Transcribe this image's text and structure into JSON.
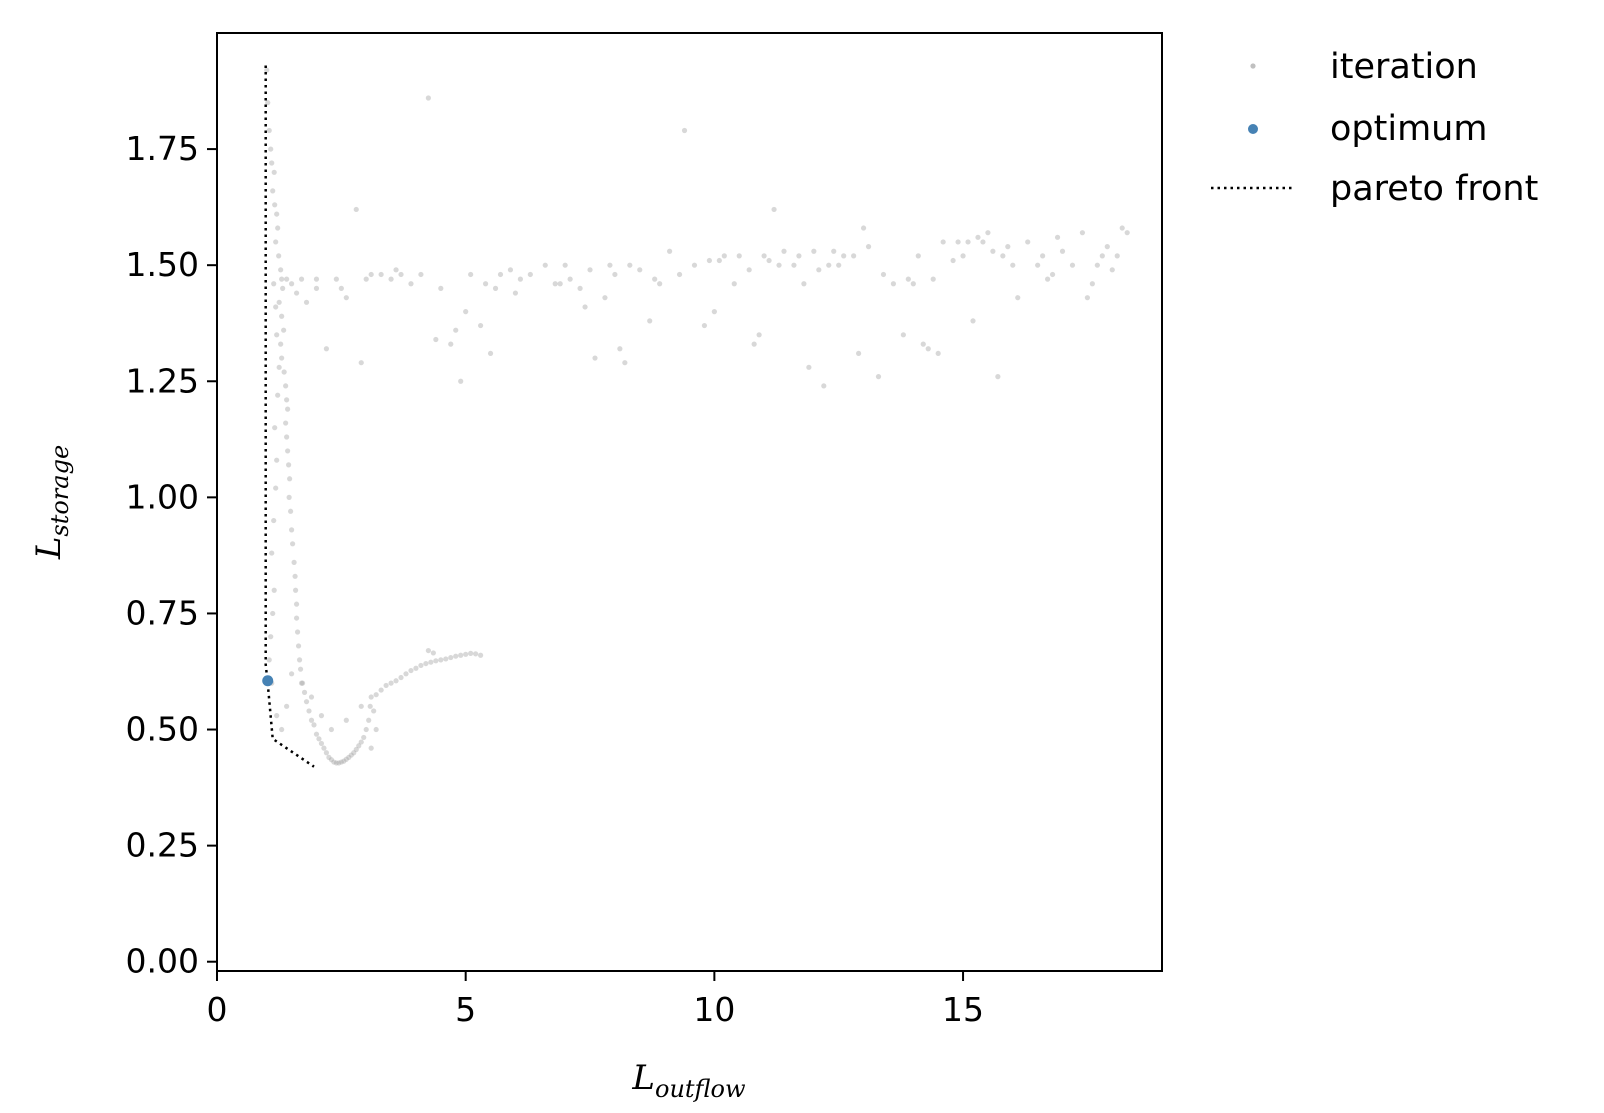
{
  "chart_data": {
    "type": "scatter",
    "xlabel": {
      "main": "L",
      "sub": "outflow"
    },
    "ylabel": {
      "main": "L",
      "sub": "storage"
    },
    "xlim": [
      0,
      19
    ],
    "ylim": [
      -0.02,
      2.0
    ],
    "xticks": [
      0,
      5,
      10,
      15
    ],
    "xtick_labels": [
      "0",
      "5",
      "10",
      "15"
    ],
    "yticks": [
      0.0,
      0.25,
      0.5,
      0.75,
      1.0,
      1.25,
      1.5,
      1.75
    ],
    "ytick_labels": [
      "0.00",
      "0.25",
      "0.50",
      "0.75",
      "1.00",
      "1.25",
      "1.50",
      "1.75"
    ],
    "grid": false,
    "legend_position": "outside-top-right",
    "legend": [
      {
        "label": "iteration",
        "marker": "dot",
        "color": "#c0c0c0"
      },
      {
        "label": "optimum",
        "marker": "dot",
        "color": "#4682b4"
      },
      {
        "label": "pareto front",
        "marker": "dotted-line",
        "color": "#000000"
      }
    ],
    "series": [
      {
        "name": "iteration",
        "color": "#a9a9a9",
        "points": [
          [
            1.0,
            1.92
          ],
          [
            1.02,
            1.85
          ],
          [
            1.05,
            1.79
          ],
          [
            1.08,
            1.75
          ],
          [
            1.1,
            1.72
          ],
          [
            1.15,
            1.7
          ],
          [
            1.12,
            1.66
          ],
          [
            1.16,
            1.63
          ],
          [
            1.2,
            1.61
          ],
          [
            1.22,
            1.58
          ],
          [
            1.18,
            1.55
          ],
          [
            1.24,
            1.52
          ],
          [
            1.28,
            1.49
          ],
          [
            1.3,
            1.47
          ],
          [
            1.32,
            1.45
          ],
          [
            1.25,
            1.42
          ],
          [
            1.3,
            1.39
          ],
          [
            1.34,
            1.36
          ],
          [
            1.28,
            1.33
          ],
          [
            1.3,
            1.3
          ],
          [
            1.35,
            1.27
          ],
          [
            1.38,
            1.24
          ],
          [
            1.4,
            1.21
          ],
          [
            1.42,
            1.19
          ],
          [
            1.38,
            1.16
          ],
          [
            1.4,
            1.13
          ],
          [
            1.42,
            1.1
          ],
          [
            1.44,
            1.07
          ],
          [
            1.46,
            1.04
          ],
          [
            1.45,
            1.0
          ],
          [
            1.48,
            0.97
          ],
          [
            1.5,
            0.93
          ],
          [
            1.52,
            0.9
          ],
          [
            1.55,
            0.86
          ],
          [
            1.57,
            0.83
          ],
          [
            1.58,
            0.8
          ],
          [
            1.6,
            0.77
          ],
          [
            1.6,
            0.74
          ],
          [
            1.62,
            0.71
          ],
          [
            1.64,
            0.68
          ],
          [
            1.66,
            0.65
          ],
          [
            1.68,
            0.63
          ],
          [
            1.72,
            0.6
          ],
          [
            1.76,
            0.58
          ],
          [
            1.8,
            0.56
          ],
          [
            1.85,
            0.54
          ],
          [
            1.9,
            0.52
          ],
          [
            1.95,
            0.51
          ],
          [
            2.0,
            0.49
          ],
          [
            2.05,
            0.48
          ],
          [
            2.1,
            0.47
          ],
          [
            2.15,
            0.46
          ],
          [
            2.2,
            0.45
          ],
          [
            2.25,
            0.44
          ],
          [
            2.3,
            0.435
          ],
          [
            2.35,
            0.43
          ],
          [
            2.4,
            0.428
          ],
          [
            2.45,
            0.428
          ],
          [
            2.5,
            0.43
          ],
          [
            2.55,
            0.432
          ],
          [
            2.6,
            0.436
          ],
          [
            2.65,
            0.44
          ],
          [
            2.7,
            0.445
          ],
          [
            2.75,
            0.45
          ],
          [
            2.8,
            0.457
          ],
          [
            2.85,
            0.465
          ],
          [
            2.9,
            0.473
          ],
          [
            2.95,
            0.483
          ],
          [
            3.0,
            0.5
          ],
          [
            3.05,
            0.52
          ],
          [
            3.08,
            0.55
          ],
          [
            3.1,
            0.57
          ],
          [
            3.2,
            0.575
          ],
          [
            3.3,
            0.585
          ],
          [
            3.4,
            0.595
          ],
          [
            3.5,
            0.6
          ],
          [
            3.6,
            0.605
          ],
          [
            3.7,
            0.612
          ],
          [
            3.8,
            0.62
          ],
          [
            3.9,
            0.627
          ],
          [
            4.0,
            0.632
          ],
          [
            4.1,
            0.638
          ],
          [
            4.2,
            0.642
          ],
          [
            4.3,
            0.645
          ],
          [
            4.4,
            0.648
          ],
          [
            4.5,
            0.65
          ],
          [
            4.6,
            0.652
          ],
          [
            4.7,
            0.655
          ],
          [
            4.8,
            0.658
          ],
          [
            4.9,
            0.66
          ],
          [
            5.0,
            0.662
          ],
          [
            5.1,
            0.664
          ],
          [
            5.2,
            0.663
          ],
          [
            5.3,
            0.66
          ],
          [
            4.25,
            0.67
          ],
          [
            4.35,
            0.665
          ],
          [
            3.15,
            0.54
          ],
          [
            3.2,
            0.5
          ],
          [
            3.1,
            0.46
          ],
          [
            2.9,
            0.55
          ],
          [
            2.6,
            0.52
          ],
          [
            2.3,
            0.5
          ],
          [
            2.1,
            0.53
          ],
          [
            1.9,
            0.57
          ],
          [
            1.7,
            0.6
          ],
          [
            1.5,
            0.62
          ],
          [
            1.4,
            0.55
          ],
          [
            1.3,
            0.5
          ],
          [
            1.2,
            0.53
          ],
          [
            1.1,
            0.6
          ],
          [
            1.05,
            0.65
          ],
          [
            1.08,
            0.7
          ],
          [
            1.12,
            0.75
          ],
          [
            1.15,
            0.8
          ],
          [
            1.1,
            0.88
          ],
          [
            1.14,
            0.95
          ],
          [
            1.18,
            1.02
          ],
          [
            1.2,
            1.08
          ],
          [
            1.16,
            1.15
          ],
          [
            1.22,
            1.22
          ],
          [
            1.25,
            1.28
          ],
          [
            1.2,
            1.35
          ],
          [
            1.18,
            1.41
          ],
          [
            1.14,
            1.46
          ],
          [
            1.4,
            1.47
          ],
          [
            1.5,
            1.46
          ],
          [
            1.6,
            1.44
          ],
          [
            1.8,
            1.42
          ],
          [
            2.0,
            1.47
          ],
          [
            2.2,
            1.32
          ],
          [
            2.4,
            1.47
          ],
          [
            2.5,
            1.45
          ],
          [
            2.8,
            1.62
          ],
          [
            2.9,
            1.29
          ],
          [
            3.0,
            1.47
          ],
          [
            3.1,
            1.48
          ],
          [
            3.3,
            1.48
          ],
          [
            3.5,
            1.47
          ],
          [
            3.7,
            1.48
          ],
          [
            3.9,
            1.46
          ],
          [
            4.1,
            1.48
          ],
          [
            4.25,
            1.86
          ],
          [
            4.5,
            1.45
          ],
          [
            4.7,
            1.33
          ],
          [
            4.8,
            1.36
          ],
          [
            4.9,
            1.25
          ],
          [
            5.0,
            1.4
          ],
          [
            5.1,
            1.48
          ],
          [
            5.3,
            1.37
          ],
          [
            5.4,
            1.46
          ],
          [
            5.5,
            1.31
          ],
          [
            5.7,
            1.48
          ],
          [
            5.9,
            1.49
          ],
          [
            6.1,
            1.47
          ],
          [
            6.3,
            1.48
          ],
          [
            6.6,
            1.5
          ],
          [
            6.8,
            1.46
          ],
          [
            7.0,
            1.5
          ],
          [
            7.1,
            1.47
          ],
          [
            7.3,
            1.45
          ],
          [
            7.4,
            1.41
          ],
          [
            7.5,
            1.49
          ],
          [
            7.6,
            1.3
          ],
          [
            7.8,
            1.43
          ],
          [
            7.9,
            1.5
          ],
          [
            8.0,
            1.48
          ],
          [
            8.1,
            1.32
          ],
          [
            8.2,
            1.29
          ],
          [
            8.3,
            1.5
          ],
          [
            8.5,
            1.49
          ],
          [
            8.7,
            1.38
          ],
          [
            8.9,
            1.46
          ],
          [
            9.1,
            1.53
          ],
          [
            9.3,
            1.48
          ],
          [
            9.4,
            1.79
          ],
          [
            9.6,
            1.5
          ],
          [
            9.8,
            1.37
          ],
          [
            9.9,
            1.51
          ],
          [
            10.0,
            1.4
          ],
          [
            10.2,
            1.52
          ],
          [
            10.4,
            1.46
          ],
          [
            10.5,
            1.52
          ],
          [
            10.7,
            1.49
          ],
          [
            10.8,
            1.33
          ],
          [
            10.9,
            1.35
          ],
          [
            11.0,
            1.52
          ],
          [
            11.1,
            1.51
          ],
          [
            11.2,
            1.62
          ],
          [
            11.3,
            1.5
          ],
          [
            11.4,
            1.53
          ],
          [
            11.6,
            1.5
          ],
          [
            11.7,
            1.52
          ],
          [
            11.8,
            1.46
          ],
          [
            11.9,
            1.28
          ],
          [
            12.0,
            1.53
          ],
          [
            12.1,
            1.49
          ],
          [
            12.2,
            1.24
          ],
          [
            12.3,
            1.5
          ],
          [
            12.4,
            1.53
          ],
          [
            12.6,
            1.52
          ],
          [
            12.8,
            1.52
          ],
          [
            12.9,
            1.31
          ],
          [
            13.0,
            1.58
          ],
          [
            13.1,
            1.54
          ],
          [
            13.3,
            1.26
          ],
          [
            13.4,
            1.48
          ],
          [
            13.6,
            1.46
          ],
          [
            13.8,
            1.35
          ],
          [
            13.9,
            1.47
          ],
          [
            14.1,
            1.52
          ],
          [
            14.2,
            1.33
          ],
          [
            14.3,
            1.32
          ],
          [
            14.4,
            1.47
          ],
          [
            14.5,
            1.31
          ],
          [
            14.6,
            1.55
          ],
          [
            14.8,
            1.51
          ],
          [
            14.9,
            1.55
          ],
          [
            15.0,
            1.52
          ],
          [
            15.1,
            1.55
          ],
          [
            15.2,
            1.38
          ],
          [
            15.3,
            1.56
          ],
          [
            15.4,
            1.55
          ],
          [
            15.5,
            1.57
          ],
          [
            15.6,
            1.53
          ],
          [
            15.7,
            1.26
          ],
          [
            15.8,
            1.52
          ],
          [
            15.9,
            1.54
          ],
          [
            16.0,
            1.5
          ],
          [
            16.1,
            1.43
          ],
          [
            16.3,
            1.55
          ],
          [
            16.5,
            1.5
          ],
          [
            16.6,
            1.52
          ],
          [
            16.8,
            1.48
          ],
          [
            16.9,
            1.56
          ],
          [
            17.0,
            1.53
          ],
          [
            17.2,
            1.5
          ],
          [
            17.4,
            1.57
          ],
          [
            17.5,
            1.43
          ],
          [
            17.7,
            1.5
          ],
          [
            17.8,
            1.52
          ],
          [
            17.9,
            1.54
          ],
          [
            18.0,
            1.49
          ],
          [
            18.1,
            1.52
          ],
          [
            18.2,
            1.58
          ],
          [
            18.3,
            1.57
          ],
          [
            17.6,
            1.46
          ],
          [
            16.7,
            1.47
          ],
          [
            14.0,
            1.46
          ],
          [
            12.5,
            1.5
          ],
          [
            10.1,
            1.51
          ],
          [
            8.8,
            1.47
          ],
          [
            6.9,
            1.46
          ],
          [
            6.0,
            1.44
          ],
          [
            5.6,
            1.45
          ],
          [
            4.4,
            1.34
          ],
          [
            3.6,
            1.49
          ],
          [
            2.6,
            1.43
          ],
          [
            2.0,
            1.45
          ],
          [
            1.7,
            1.47
          ]
        ]
      },
      {
        "name": "optimum",
        "color": "#4682b4",
        "points": [
          [
            1.02,
            0.605
          ]
        ]
      },
      {
        "name": "pareto front",
        "color": "#000000",
        "points": [
          [
            0.98,
            1.93
          ],
          [
            0.98,
            0.64
          ],
          [
            1.02,
            0.6
          ],
          [
            1.12,
            0.48
          ],
          [
            1.95,
            0.42
          ]
        ]
      }
    ]
  }
}
